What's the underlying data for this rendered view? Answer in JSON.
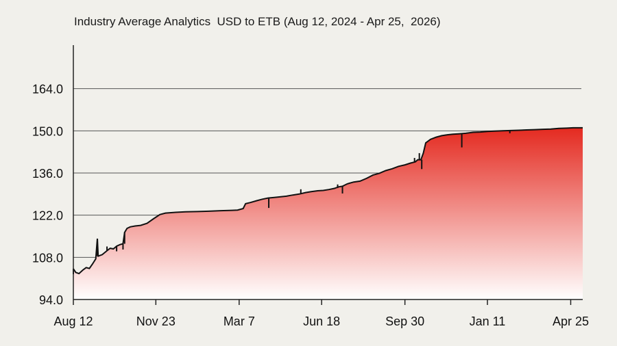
{
  "chart_data": {
    "type": "area",
    "title": "Industry Average Analytics  USD to ETB (Aug 12, 2024 - Apr 25,  2026)",
    "xlabel": "",
    "ylabel": "",
    "ylim": [
      94,
      178
    ],
    "xlim": [
      "2024-08-12",
      "2026-05-10"
    ],
    "grid": true,
    "legend": "none",
    "y_ticks": [
      {
        "value": 94,
        "label": "94.0"
      },
      {
        "value": 108,
        "label": "108.0"
      },
      {
        "value": 122,
        "label": "122.0"
      },
      {
        "value": 136,
        "label": "136.0"
      },
      {
        "value": 150,
        "label": "150.0"
      },
      {
        "value": 164,
        "label": "164.0"
      }
    ],
    "x_ticks": [
      {
        "value": "2024-08-12",
        "label": "Aug 12"
      },
      {
        "value": "2024-11-23",
        "label": "Nov 23"
      },
      {
        "value": "2025-03-07",
        "label": "Mar 7"
      },
      {
        "value": "2025-06-18",
        "label": "Jun 18"
      },
      {
        "value": "2025-09-30",
        "label": "Sep 30"
      },
      {
        "value": "2026-01-11",
        "label": "Jan 11"
      },
      {
        "value": "2026-04-25",
        "label": "Apr 25"
      }
    ],
    "series": [
      {
        "values": [
          [
            "2024-08-12",
            104.2
          ],
          [
            "2024-08-15",
            103.0
          ],
          [
            "2024-08-19",
            102.6
          ],
          [
            "2024-08-24",
            103.8
          ],
          [
            "2024-08-28",
            104.6
          ],
          [
            "2024-09-01",
            104.3
          ],
          [
            "2024-09-05",
            105.8
          ],
          [
            "2024-09-09",
            107.5
          ],
          [
            "2024-09-11",
            114.2
          ],
          [
            "2024-09-12",
            108.4
          ],
          [
            "2024-09-17",
            108.9
          ],
          [
            "2024-09-23",
            110.2
          ],
          [
            "2024-09-27",
            111.0
          ],
          [
            "2024-10-01",
            110.8
          ],
          [
            "2024-10-05",
            111.7
          ],
          [
            "2024-10-09",
            112.2
          ],
          [
            "2024-10-13",
            112.5
          ],
          [
            "2024-10-15",
            116.3
          ],
          [
            "2024-10-18",
            117.6
          ],
          [
            "2024-10-22",
            118.1
          ],
          [
            "2024-10-28",
            118.4
          ],
          [
            "2024-11-04",
            118.6
          ],
          [
            "2024-11-12",
            119.3
          ],
          [
            "2024-11-20",
            120.8
          ],
          [
            "2024-11-28",
            122.2
          ],
          [
            "2024-12-05",
            122.7
          ],
          [
            "2024-12-15",
            122.9
          ],
          [
            "2024-12-30",
            123.1
          ],
          [
            "2025-01-14",
            123.2
          ],
          [
            "2025-01-28",
            123.3
          ],
          [
            "2025-02-12",
            123.5
          ],
          [
            "2025-02-26",
            123.6
          ],
          [
            "2025-03-05",
            123.7
          ],
          [
            "2025-03-12",
            124.2
          ],
          [
            "2025-03-15",
            125.8
          ],
          [
            "2025-03-21",
            126.2
          ],
          [
            "2025-03-29",
            126.8
          ],
          [
            "2025-04-05",
            127.3
          ],
          [
            "2025-04-12",
            127.7
          ],
          [
            "2025-04-20",
            127.9
          ],
          [
            "2025-04-28",
            128.1
          ],
          [
            "2025-05-05",
            128.3
          ],
          [
            "2025-05-13",
            128.7
          ],
          [
            "2025-05-21",
            129.0
          ],
          [
            "2025-05-29",
            129.5
          ],
          [
            "2025-06-05",
            129.8
          ],
          [
            "2025-06-13",
            130.1
          ],
          [
            "2025-06-20",
            130.2
          ],
          [
            "2025-06-27",
            130.5
          ],
          [
            "2025-07-04",
            130.9
          ],
          [
            "2025-07-09",
            131.4
          ],
          [
            "2025-07-14",
            131.6
          ],
          [
            "2025-07-20",
            132.4
          ],
          [
            "2025-07-28",
            133.0
          ],
          [
            "2025-08-05",
            133.3
          ],
          [
            "2025-08-13",
            134.2
          ],
          [
            "2025-08-21",
            135.3
          ],
          [
            "2025-08-29",
            135.9
          ],
          [
            "2025-09-06",
            136.8
          ],
          [
            "2025-09-14",
            137.4
          ],
          [
            "2025-09-22",
            138.2
          ],
          [
            "2025-09-30",
            138.7
          ],
          [
            "2025-10-07",
            139.3
          ],
          [
            "2025-10-13",
            139.7
          ],
          [
            "2025-10-16",
            140.4
          ],
          [
            "2025-10-20",
            140.4
          ],
          [
            "2025-10-23",
            142.6
          ],
          [
            "2025-10-26",
            146.0
          ],
          [
            "2025-11-01",
            147.2
          ],
          [
            "2025-11-08",
            147.9
          ],
          [
            "2025-11-15",
            148.4
          ],
          [
            "2025-11-22",
            148.7
          ],
          [
            "2025-11-29",
            148.9
          ],
          [
            "2025-12-06",
            149.0
          ],
          [
            "2025-12-15",
            149.2
          ],
          [
            "2025-12-24",
            149.5
          ],
          [
            "2026-01-02",
            149.6
          ],
          [
            "2026-01-11",
            149.8
          ],
          [
            "2026-01-20",
            149.9
          ],
          [
            "2026-01-30",
            150.0
          ],
          [
            "2026-02-09",
            150.1
          ],
          [
            "2026-02-19",
            150.2
          ],
          [
            "2026-03-01",
            150.3
          ],
          [
            "2026-03-11",
            150.4
          ],
          [
            "2026-03-21",
            150.5
          ],
          [
            "2026-03-31",
            150.6
          ],
          [
            "2026-04-10",
            150.8
          ],
          [
            "2026-04-20",
            150.9
          ],
          [
            "2026-04-28",
            151.0
          ],
          [
            "2026-05-05",
            151.0
          ],
          [
            "2026-05-10",
            151.0
          ]
        ]
      }
    ],
    "spikes": [
      [
        "2024-08-12",
        104.2,
        102.4
      ],
      [
        "2024-09-11",
        108.4,
        114.2
      ],
      [
        "2024-09-23",
        110.2,
        111.6
      ],
      [
        "2024-10-05",
        111.7,
        110.0
      ],
      [
        "2024-10-13",
        112.5,
        110.6
      ],
      [
        "2024-10-15",
        112.5,
        116.3
      ],
      [
        "2025-04-13",
        127.7,
        124.4
      ],
      [
        "2025-05-23",
        129.0,
        130.6
      ],
      [
        "2025-07-08",
        131.0,
        132.2
      ],
      [
        "2025-07-14",
        131.6,
        129.2
      ],
      [
        "2025-10-12",
        139.7,
        141.0
      ],
      [
        "2025-10-18",
        140.4,
        142.6
      ],
      [
        "2025-10-21",
        140.4,
        137.3
      ],
      [
        "2025-12-10",
        149.1,
        144.5
      ],
      [
        "2026-02-08",
        150.1,
        149.2
      ]
    ],
    "colors": {
      "fill_top": "#e42a20",
      "fill_bottom": "#ffffff",
      "line": "#111111",
      "grid": "#555555",
      "background": "#f1f0eb"
    }
  }
}
